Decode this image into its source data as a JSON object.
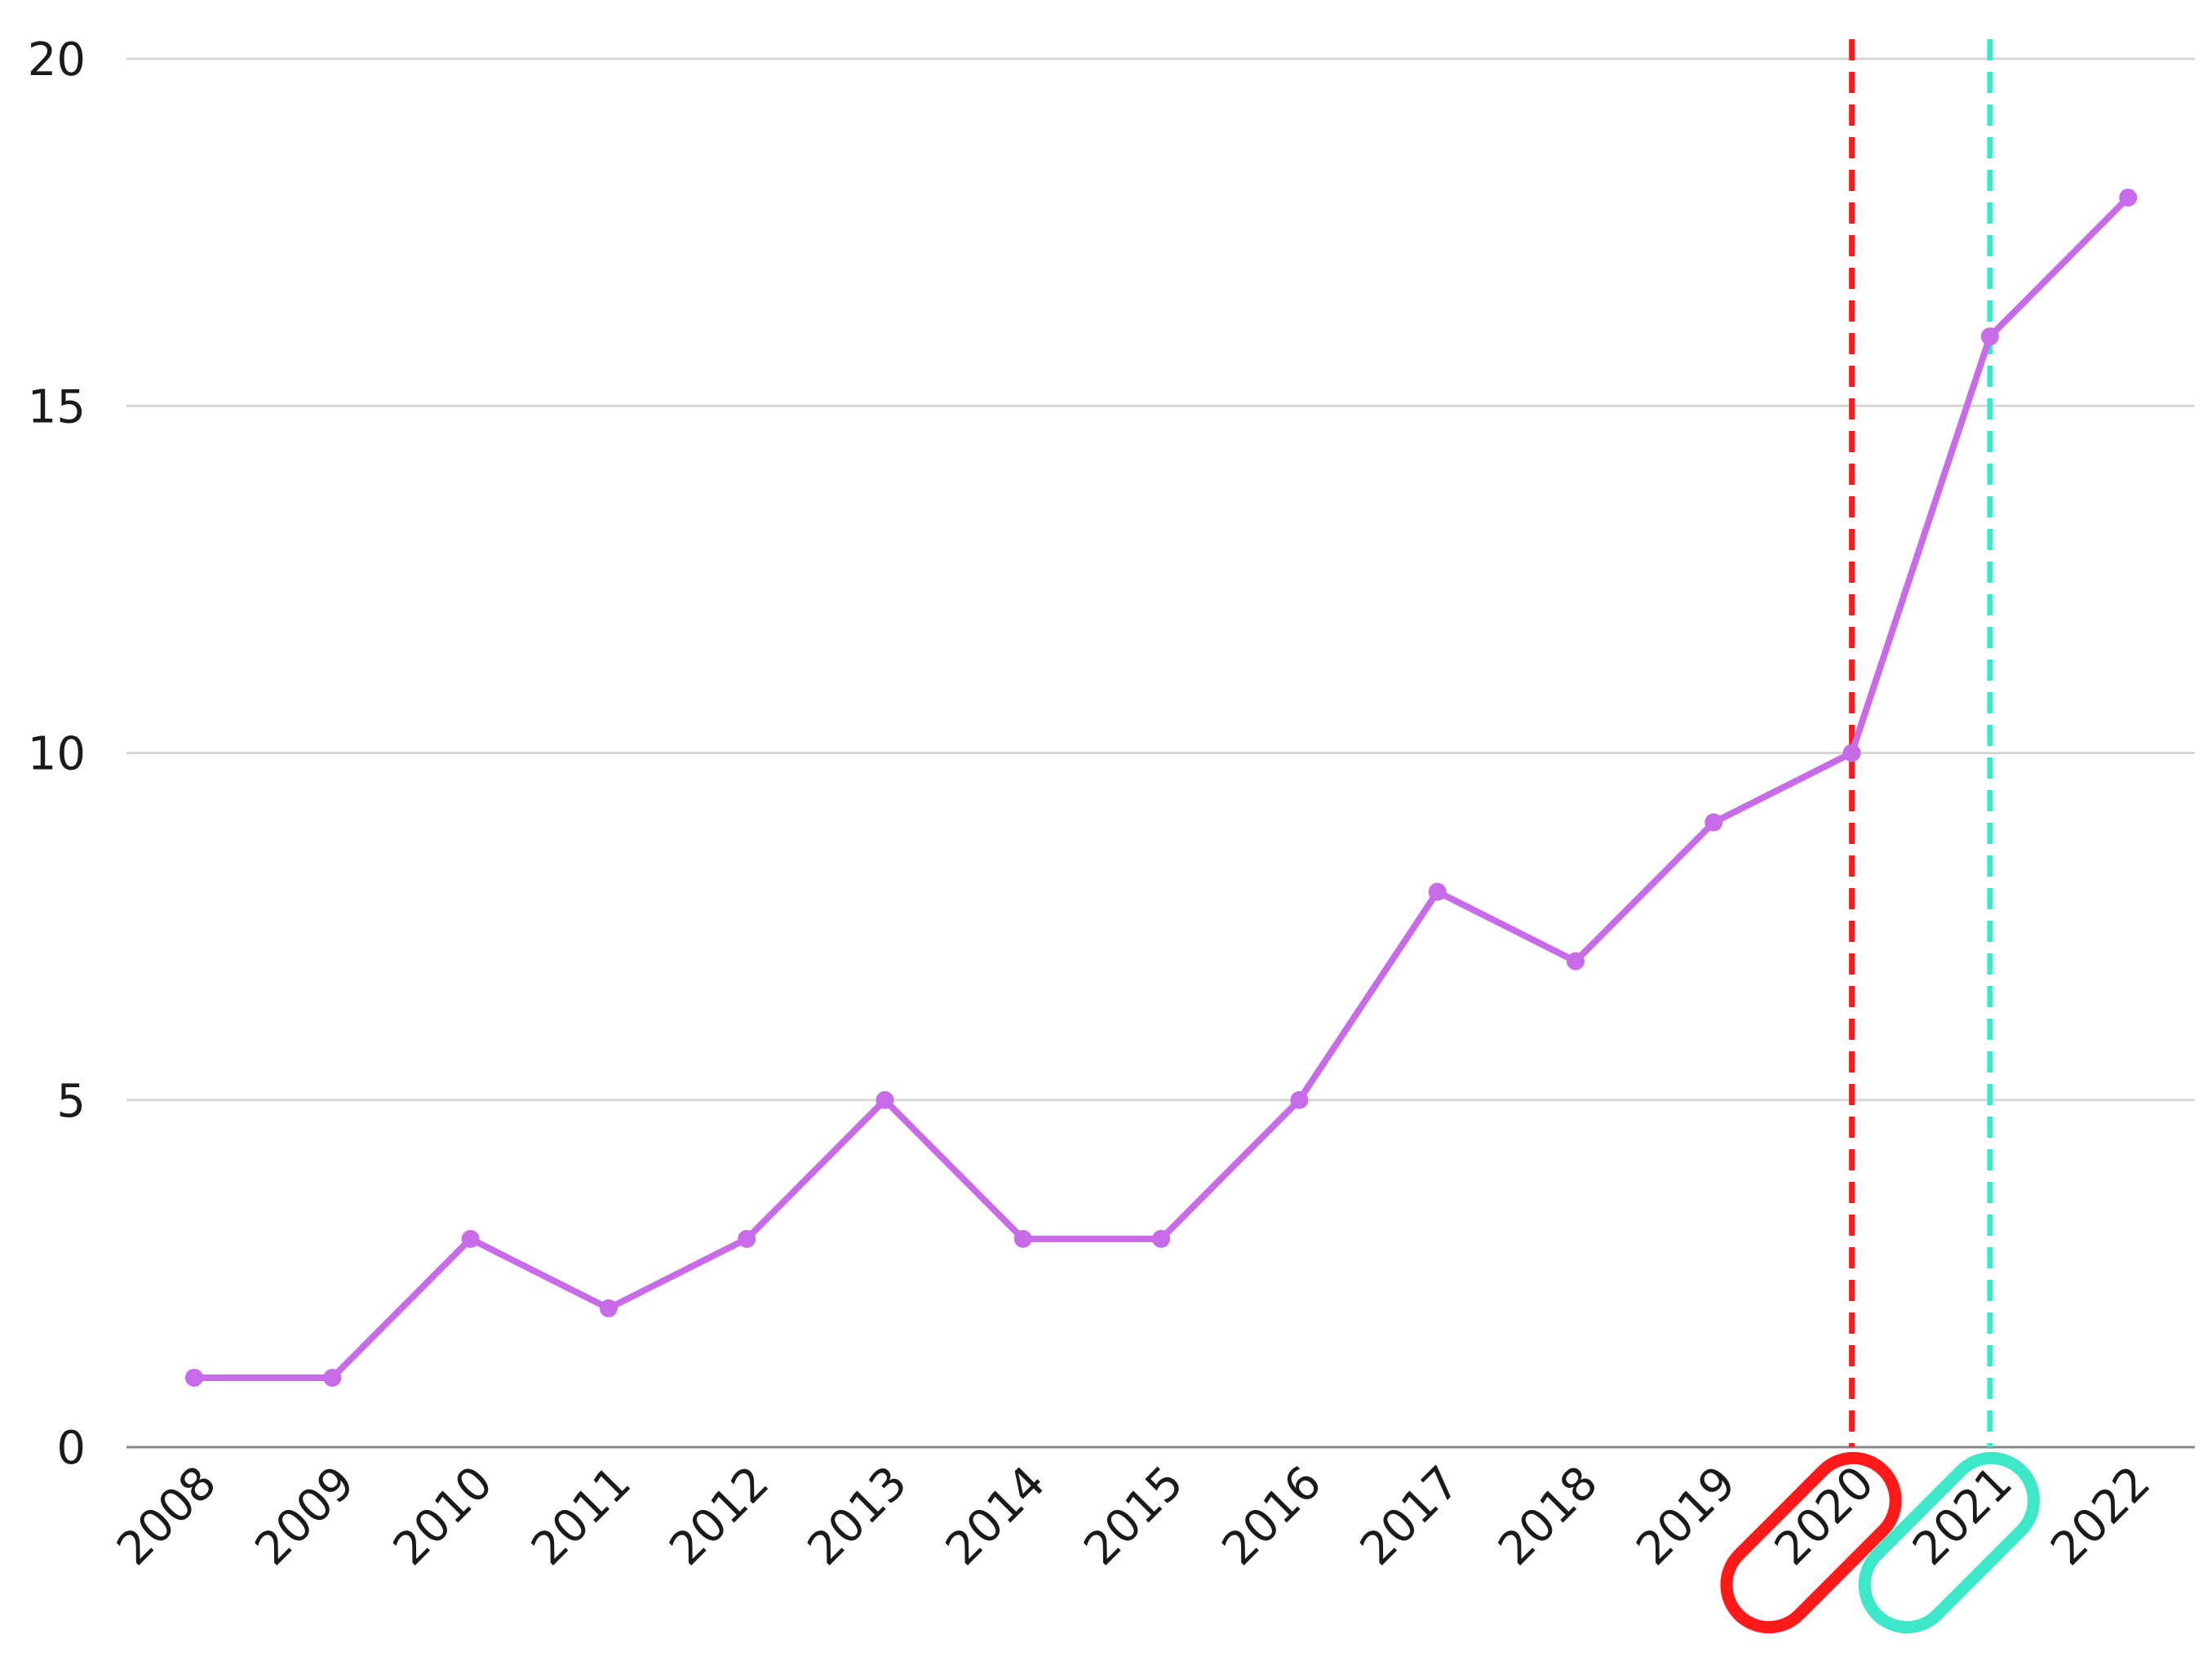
{
  "chart_data": {
    "type": "line",
    "title": "",
    "xlabel": "",
    "ylabel": "",
    "categories": [
      "2008",
      "2009",
      "2010",
      "2011",
      "2012",
      "2013",
      "2014",
      "2015",
      "2016",
      "2017",
      "2018",
      "2019",
      "2020",
      "2021",
      "2022"
    ],
    "series": [
      {
        "values": [
          1,
          1,
          3,
          2,
          3,
          5,
          3,
          3,
          5,
          8,
          7,
          9,
          10,
          16,
          18
        ],
        "color": "#c76be8"
      }
    ],
    "ylim": [
      0,
      20
    ],
    "yticks": [
      "0",
      "5",
      "10",
      "15",
      "20"
    ],
    "grid": true,
    "legend": "none",
    "markers": [
      {
        "x": "2020",
        "style": "dashed-vertical-line",
        "color": "#ff1a1a",
        "highlight": "rounded-outline-around-tick-label"
      },
      {
        "x": "2021",
        "style": "dashed-vertical-line",
        "color": "#3de8c8",
        "highlight": "rounded-outline-around-tick-label"
      }
    ],
    "colors": {
      "grid": "#d6d6d6",
      "axis": "#888888",
      "text": "#1a1a1a"
    }
  }
}
